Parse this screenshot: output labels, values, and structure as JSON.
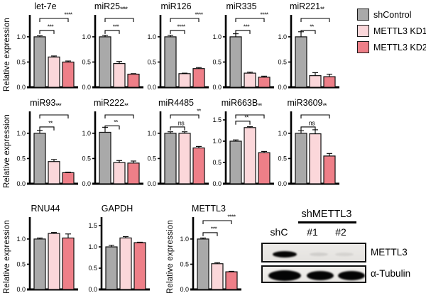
{
  "figure": {
    "ylabel": "Relative expression",
    "legend": [
      {
        "label": "shControl",
        "color": "#a9a9a9"
      },
      {
        "label": "METTL3 KD1",
        "color": "#fbd7da"
      },
      {
        "label": "METTL3 KD2",
        "color": "#ee7f88"
      }
    ]
  },
  "chart_data": [
    {
      "type": "bar",
      "title": "let-7e",
      "row": 1,
      "categories": [
        "shControl",
        "METTL3 KD1",
        "METTL3 KD2"
      ],
      "values": [
        1.0,
        0.6,
        0.5
      ],
      "errors": [
        0.02,
        0.02,
        0.02
      ],
      "yticks": [
        0,
        0.5,
        1
      ],
      "ylim": [
        0,
        1.35
      ],
      "ylabel": true,
      "sig12": "***",
      "sig13": "****",
      "sig13_at": "plot"
    },
    {
      "type": "bar",
      "title": "miR25",
      "row": 1,
      "categories": [
        "shControl",
        "METTL3 KD1",
        "METTL3 KD2"
      ],
      "values": [
        1.0,
        0.47,
        0.26
      ],
      "errors": [
        0.03,
        0.04,
        0.01
      ],
      "yticks": [
        0,
        0.5,
        1
      ],
      "ylim": [
        0,
        1.35
      ],
      "sig12": "***",
      "sig13": "****",
      "sig13_at": "title"
    },
    {
      "type": "bar",
      "title": "miR126",
      "row": 1,
      "categories": [
        "shControl",
        "METTL3 KD1",
        "METTL3 KD2"
      ],
      "values": [
        1.0,
        0.27,
        0.37
      ],
      "errors": [
        0.03,
        0.01,
        0.02
      ],
      "yticks": [
        0,
        0.5,
        1
      ],
      "ylim": [
        0,
        1.35
      ],
      "sig12": "****",
      "sig13": "****",
      "sig13_at": "plot"
    },
    {
      "type": "bar",
      "title": "miR335",
      "row": 1,
      "categories": [
        "shControl",
        "METTL3 KD1",
        "METTL3 KD2"
      ],
      "values": [
        1.0,
        0.28,
        0.2
      ],
      "errors": [
        0.06,
        0.02,
        0.02
      ],
      "yticks": [
        0,
        0.5,
        1
      ],
      "ylim": [
        0,
        1.35
      ],
      "sig12": "***",
      "sig13": "****",
      "sig13_at": "plot"
    },
    {
      "type": "bar",
      "title": "miR221",
      "row": 1,
      "categories": [
        "shControl",
        "METTL3 KD1",
        "METTL3 KD2"
      ],
      "values": [
        1.0,
        0.23,
        0.21
      ],
      "errors": [
        0.1,
        0.06,
        0.05
      ],
      "yticks": [
        0,
        0.5,
        1
      ],
      "ylim": [
        0,
        1.35
      ],
      "sig12": "**",
      "sig13": "**",
      "sig13_at": "title"
    },
    {
      "type": "bar",
      "title": "miR93",
      "row": 2,
      "categories": [
        "shControl",
        "METTL3 KD1",
        "METTL3 KD2"
      ],
      "values": [
        1.0,
        0.44,
        0.22
      ],
      "errors": [
        0.06,
        0.04,
        0.01
      ],
      "yticks": [
        0,
        0.5,
        1
      ],
      "ylim": [
        0,
        1.35
      ],
      "ylabel": true,
      "sig12": "**",
      "sig13": "***",
      "sig13_at": "title"
    },
    {
      "type": "bar",
      "title": "miR222",
      "row": 2,
      "categories": [
        "shControl",
        "METTL3 KD1",
        "METTL3 KD2"
      ],
      "values": [
        1.02,
        0.42,
        0.41
      ],
      "errors": [
        0.1,
        0.04,
        0.04
      ],
      "yticks": [
        0,
        0.5,
        1
      ],
      "ylim": [
        0,
        1.35
      ],
      "sig12": "**",
      "sig13": "**",
      "sig13_at": "title"
    },
    {
      "type": "bar",
      "title": "miR4485",
      "row": 2,
      "categories": [
        "shControl",
        "METTL3 KD1",
        "METTL3 KD2"
      ],
      "values": [
        1.0,
        1.0,
        0.71
      ],
      "errors": [
        0.03,
        0.03,
        0.03
      ],
      "yticks": [
        0,
        0.5,
        1
      ],
      "ylim": [
        0,
        1.35
      ],
      "sig12": "ns",
      "sig13": "**",
      "sig13_at": "plot"
    },
    {
      "type": "bar",
      "title": "miR663B",
      "row": 2,
      "categories": [
        "shControl",
        "METTL3 KD1",
        "METTL3 KD2"
      ],
      "values": [
        1.0,
        1.32,
        0.73
      ],
      "errors": [
        0.03,
        0.02,
        0.03
      ],
      "yticks": [
        0,
        0.5,
        1,
        1.5
      ],
      "ylim": [
        0,
        1.6
      ],
      "sig12": "**",
      "sig13": "**",
      "sig13_at": "title"
    },
    {
      "type": "bar",
      "title": "miR3609",
      "row": 2,
      "categories": [
        "shControl",
        "METTL3 KD1",
        "METTL3 KD2"
      ],
      "values": [
        1.0,
        0.99,
        0.55
      ],
      "errors": [
        0.05,
        0.08,
        0.05
      ],
      "yticks": [
        0,
        0.5,
        1
      ],
      "ylim": [
        0,
        1.35
      ],
      "sig12": "ns",
      "sig13": "**",
      "sig13_at": "title"
    },
    {
      "type": "bar",
      "title": "RNU44",
      "row": 3,
      "categories": [
        "shControl",
        "METTL3 KD1",
        "METTL3 KD2"
      ],
      "values": [
        1.0,
        1.11,
        1.02
      ],
      "errors": [
        0.02,
        0.02,
        0.08
      ],
      "yticks": [
        0,
        0.5,
        1
      ],
      "ylim": [
        0,
        1.35
      ],
      "ylabel": true
    },
    {
      "type": "bar",
      "title": "GAPDH",
      "row": 3,
      "categories": [
        "shControl",
        "METTL3 KD1",
        "METTL3 KD2"
      ],
      "values": [
        1.0,
        1.21,
        1.1
      ],
      "errors": [
        0.04,
        0.03,
        0.01
      ],
      "yticks": [
        0,
        0.5,
        1,
        1.5
      ],
      "ylim": [
        0,
        1.6
      ],
      "ml": 9
    },
    {
      "type": "bar",
      "title": "METTL3",
      "row": 3,
      "categories": [
        "shControl",
        "METTL3 KD1",
        "METTL3 KD2"
      ],
      "values": [
        1.0,
        0.51,
        0.35
      ],
      "errors": [
        0.02,
        0.02,
        0.01
      ],
      "yticks": [
        0,
        0.5,
        1
      ],
      "ylim": [
        0,
        1.35
      ],
      "ylabel": true,
      "ml": 21,
      "sig12": "***",
      "sig13": "****",
      "sig13_at": "plot"
    }
  ],
  "blot": {
    "header": "shMETTL3",
    "lanes": [
      "shC",
      "#1",
      "#2"
    ],
    "rows": [
      {
        "label": "METTL3",
        "bands": [
          1.0,
          0.1,
          0.08
        ]
      },
      {
        "label": "α-Tubulin",
        "bands": [
          1.0,
          1.0,
          1.0
        ]
      }
    ]
  }
}
